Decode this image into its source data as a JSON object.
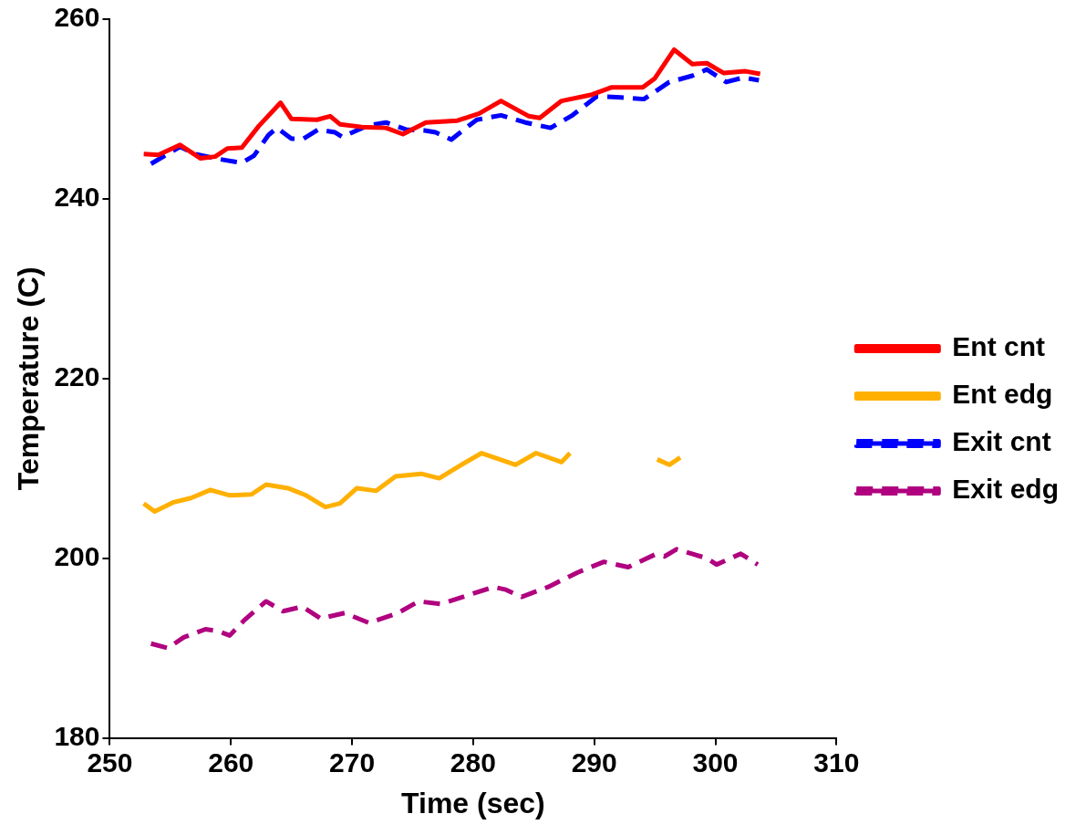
{
  "chart_data": {
    "type": "line",
    "xlabel": "Time (sec)",
    "ylabel": "Temperature (C)",
    "xlim": [
      250,
      310
    ],
    "xticks": [
      250,
      260,
      270,
      280,
      290,
      300,
      310
    ],
    "ylim": [
      180,
      260
    ],
    "yticks": [
      180,
      200,
      220,
      240,
      260
    ],
    "grid": false,
    "legend": "right",
    "series": [
      {
        "name": "Ent cnt",
        "color": "#ff0000",
        "line_style": "solid",
        "x": [
          252.8,
          254.0,
          255.8,
          257.5,
          258.7,
          259.7,
          260.9,
          262.3,
          264.1,
          265.0,
          267.1,
          268.2,
          269.0,
          270.8,
          272.8,
          274.2,
          276.1,
          278.7,
          280.5,
          282.3,
          284.6,
          285.5,
          287.3,
          289.8,
          291.4,
          294.0,
          295.0,
          296.6,
          298.1,
          299.3,
          300.7,
          302.5,
          303.7
        ],
        "values": [
          245.0,
          244.9,
          246.0,
          244.5,
          244.7,
          245.6,
          245.7,
          248.1,
          250.7,
          248.9,
          248.8,
          249.2,
          248.3,
          248.0,
          247.9,
          247.2,
          248.5,
          248.7,
          249.5,
          250.9,
          249.2,
          249.0,
          250.9,
          251.6,
          252.4,
          252.4,
          253.4,
          256.6,
          255.0,
          255.1,
          254.0,
          254.2,
          253.9
        ]
      },
      {
        "name": "Ent edg",
        "color": "#ffb000",
        "line_style": "solid",
        "x": [
          252.8,
          253.7,
          255.2,
          256.7,
          258.3,
          259.9,
          261.7,
          262.9,
          264.7,
          266.2,
          267.8,
          269.0,
          270.4,
          272.0,
          273.6,
          275.7,
          277.2,
          278.9,
          280.7,
          283.5,
          285.2,
          287.3,
          288.0,
          291.5,
          295.2,
          296.2,
          297.1
        ],
        "values": [
          206.1,
          205.2,
          206.2,
          206.7,
          207.6,
          207.0,
          207.1,
          208.2,
          207.8,
          207.0,
          205.7,
          206.1,
          207.8,
          207.5,
          209.1,
          209.4,
          208.9,
          210.3,
          211.7,
          210.4,
          211.7,
          210.7,
          211.7,
          null,
          211.0,
          210.4,
          211.2
        ]
      },
      {
        "name": "Exit cnt",
        "color": "#0000ff",
        "line_style": "dashed",
        "x": [
          253.4,
          255.8,
          257.0,
          258.7,
          260.9,
          261.9,
          263.1,
          263.8,
          265.0,
          266.0,
          267.2,
          268.6,
          269.2,
          271.4,
          272.8,
          274.5,
          276.0,
          276.9,
          278.2,
          279.7,
          280.3,
          282.3,
          284.3,
          286.4,
          288.2,
          290.2,
          292.2,
          294.1,
          296.2,
          298.1,
          299.3,
          300.9,
          302.3,
          303.6
        ],
        "values": [
          243.9,
          245.8,
          245.0,
          244.5,
          244.0,
          244.8,
          247.1,
          247.9,
          246.7,
          246.7,
          247.7,
          247.4,
          246.9,
          248.2,
          248.5,
          247.7,
          247.6,
          247.4,
          246.6,
          248.2,
          248.8,
          249.3,
          248.5,
          247.9,
          249.3,
          251.4,
          251.3,
          251.1,
          253.0,
          253.7,
          254.4,
          253.0,
          253.5,
          253.2
        ]
      },
      {
        "name": "Exit edg",
        "color": "#b0007f",
        "line_style": "dashed",
        "x": [
          253.4,
          254.8,
          256.1,
          257.9,
          258.9,
          259.9,
          261.1,
          262.9,
          264.3,
          265.9,
          267.4,
          269.4,
          271.4,
          273.8,
          275.5,
          277.3,
          280.3,
          281.7,
          282.7,
          284.0,
          286.2,
          288.6,
          290.8,
          292.8,
          295.0,
          295.8,
          296.8,
          299.3,
          300.1,
          302.1,
          303.5
        ],
        "values": [
          190.5,
          190.0,
          191.2,
          192.1,
          191.9,
          191.4,
          193.1,
          195.2,
          194.1,
          194.6,
          193.3,
          193.9,
          192.8,
          193.9,
          195.2,
          194.9,
          196.2,
          196.8,
          196.5,
          195.7,
          196.8,
          198.4,
          199.6,
          199.0,
          200.4,
          200.2,
          201.0,
          200.0,
          199.3,
          200.5,
          199.3
        ]
      }
    ]
  }
}
